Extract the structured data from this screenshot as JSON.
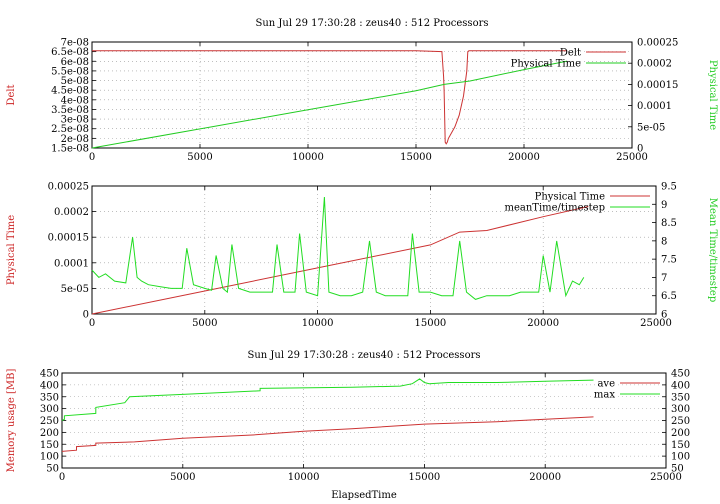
{
  "chart_data": [
    {
      "type": "line",
      "title": "Sun Jul 29 17:30:28 : zeus40 : 512 Processors",
      "xlabel": "",
      "ylabel": "Delt",
      "y2label": "Physical Time",
      "xlim": [
        0,
        25000
      ],
      "ylim": [
        1.5e-08,
        7e-08
      ],
      "y2lim": [
        0,
        0.00025
      ],
      "xticks": [
        "0",
        "5000",
        "10000",
        "15000",
        "20000",
        "25000"
      ],
      "yticks": [
        "1.5e-08",
        "2e-08",
        "2.5e-08",
        "3e-08",
        "3.5e-08",
        "4e-08",
        "4.5e-08",
        "5e-08",
        "5.5e-08",
        "6e-08",
        "6.5e-08",
        "7e-08"
      ],
      "y2ticks": [
        "0",
        "5e-05",
        "0.0001",
        "0.00015",
        "0.0002",
        "0.00025"
      ],
      "grid": true,
      "legend_position": "top-right",
      "ylabel_color": "#cc2222",
      "y2label_color": "#22cc22",
      "series": [
        {
          "name": "Delt",
          "axis": "y",
          "color": "#cc3333",
          "x": [
            0,
            5000,
            10000,
            15000,
            16200,
            16280,
            16300,
            16350,
            16400,
            16450,
            16500,
            16600,
            16800,
            17000,
            17200,
            17350,
            17400,
            17450,
            20000,
            22000
          ],
          "values": [
            6.55e-08,
            6.55e-08,
            6.55e-08,
            6.55e-08,
            6.5e-08,
            5.2e-08,
            4.5e-08,
            1.8e-08,
            1.72e-08,
            1.8e-08,
            2e-08,
            2.2e-08,
            2.6e-08,
            3.2e-08,
            4.2e-08,
            5.5e-08,
            6.5e-08,
            6.55e-08,
            6.55e-08,
            6.55e-08
          ]
        },
        {
          "name": "Physical Time",
          "axis": "y2",
          "color": "#22cc22",
          "x": [
            0,
            5000,
            10000,
            15000,
            16300,
            17500,
            20000,
            22000
          ],
          "values": [
            0,
            4.5e-05,
            9e-05,
            0.000135,
            0.00015,
            0.000158,
            0.000185,
            0.000205
          ]
        }
      ]
    },
    {
      "type": "line",
      "title": "",
      "xlabel": "",
      "ylabel": "Physical Time",
      "y2label": "Mean Time/timestep",
      "xlim": [
        0,
        25000
      ],
      "ylim": [
        0,
        0.00025
      ],
      "y2lim": [
        6,
        9.5
      ],
      "xticks": [
        "0",
        "5000",
        "10000",
        "15000",
        "20000",
        "25000"
      ],
      "yticks": [
        "0",
        "5e-05",
        "0.0001",
        "0.00015",
        "0.0002",
        "0.00025"
      ],
      "y2ticks": [
        "6",
        "6.5",
        "7",
        "7.5",
        "8",
        "8.5",
        "9",
        "9.5"
      ],
      "grid": true,
      "legend_position": "top-right",
      "ylabel_color": "#cc2222",
      "y2label_color": "#22cc22",
      "series": [
        {
          "name": "Physical Time",
          "axis": "y",
          "color": "#cc3333",
          "x": [
            0,
            5000,
            10000,
            15000,
            16300,
            17500,
            20000,
            22000
          ],
          "values": [
            0,
            4.5e-05,
            9e-05,
            0.000135,
            0.00016,
            0.000163,
            0.00019,
            0.00021
          ]
        },
        {
          "name": "meanTime/timestep",
          "axis": "y2",
          "color": "#22dd22",
          "x": [
            0,
            300,
            600,
            1000,
            1500,
            1800,
            2000,
            2200,
            2500,
            3000,
            3500,
            4000,
            4200,
            4500,
            5000,
            5300,
            5500,
            5800,
            6000,
            6200,
            6500,
            7000,
            7500,
            8000,
            8200,
            8500,
            9000,
            9200,
            9500,
            10000,
            10300,
            10500,
            11000,
            11500,
            12000,
            12300,
            12600,
            13000,
            13500,
            14000,
            14200,
            14500,
            15000,
            15500,
            16000,
            16300,
            16600,
            17000,
            17500,
            18000,
            18500,
            19000,
            19500,
            19800,
            20000,
            20300,
            20600,
            21000,
            21300,
            21600,
            21800
          ],
          "values": [
            7.2,
            7.0,
            7.1,
            6.9,
            6.85,
            8.1,
            7.0,
            6.9,
            6.8,
            6.75,
            6.7,
            6.7,
            7.8,
            6.8,
            6.7,
            6.65,
            7.6,
            6.7,
            6.6,
            7.9,
            6.7,
            6.6,
            6.6,
            6.6,
            7.9,
            6.6,
            6.6,
            8.2,
            6.6,
            6.5,
            9.2,
            6.6,
            6.5,
            6.5,
            6.6,
            8.0,
            6.6,
            6.5,
            6.5,
            6.5,
            8.2,
            6.6,
            6.6,
            6.5,
            6.5,
            8.0,
            6.6,
            6.4,
            6.5,
            6.5,
            6.5,
            6.6,
            6.6,
            6.6,
            7.6,
            6.6,
            8.0,
            6.5,
            6.9,
            6.8,
            7.0
          ]
        }
      ]
    },
    {
      "type": "line",
      "title": "Sun Jul 29 17:30:28 : zeus40 : 512 Processors",
      "xlabel": "ElapsedTime",
      "ylabel": "Memory usage [MB]",
      "y2label": "",
      "xlim": [
        0,
        25000
      ],
      "ylim": [
        50,
        450
      ],
      "y2lim": [
        50,
        450
      ],
      "xticks": [
        "0",
        "5000",
        "10000",
        "15000",
        "20000",
        "25000"
      ],
      "yticks": [
        "50",
        "100",
        "150",
        "200",
        "250",
        "300",
        "350",
        "400",
        "450"
      ],
      "y2ticks": [
        "50",
        "100",
        "150",
        "200",
        "250",
        "300",
        "350",
        "400",
        "450"
      ],
      "grid": true,
      "legend_position": "top-right",
      "ylabel_color": "#cc2222",
      "y2label_color": "#22cc22",
      "series": [
        {
          "name": "ave",
          "axis": "y",
          "color": "#cc3333",
          "x": [
            0,
            600,
            600,
            1400,
            1400,
            3000,
            5000,
            8000,
            10000,
            12000,
            15000,
            18000,
            20000,
            22000
          ],
          "values": [
            120,
            125,
            140,
            145,
            155,
            160,
            175,
            190,
            205,
            215,
            235,
            245,
            255,
            265
          ]
        },
        {
          "name": "max",
          "axis": "y",
          "color": "#22dd22",
          "x": [
            0,
            100,
            100,
            1400,
            1400,
            2600,
            2800,
            5000,
            8200,
            8200,
            12000,
            14000,
            14500,
            14800,
            15000,
            15200,
            16000,
            18000,
            20000,
            22000
          ],
          "values": [
            250,
            255,
            270,
            280,
            305,
            325,
            350,
            360,
            375,
            385,
            390,
            395,
            405,
            425,
            410,
            405,
            410,
            410,
            415,
            420
          ]
        }
      ]
    }
  ]
}
